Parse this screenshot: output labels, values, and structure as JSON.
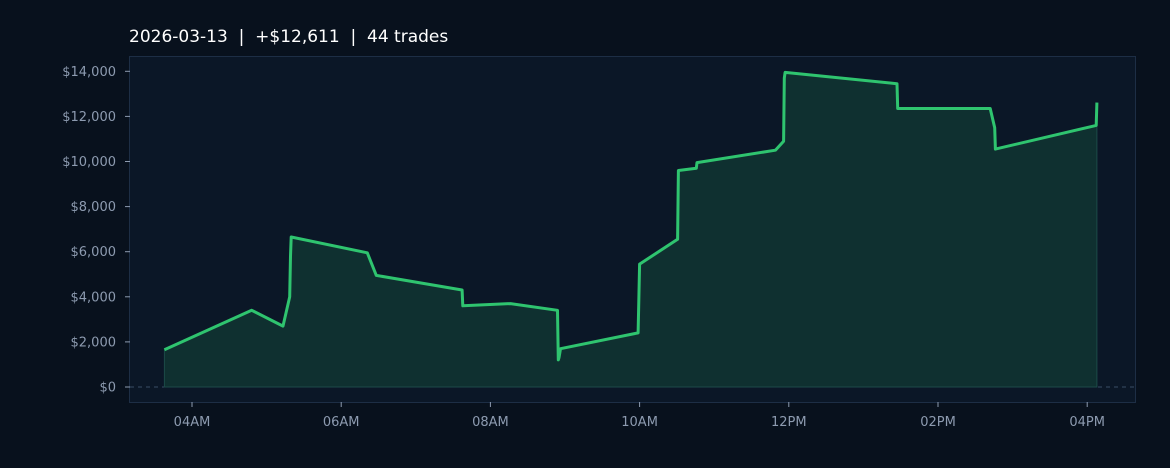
{
  "chart_data": {
    "type": "area",
    "title": "2026-03-13  |  +$12,611  |  44 trades",
    "xlabel": "",
    "ylabel": "",
    "x_tick_labels": [
      "04AM",
      "06AM",
      "08AM",
      "10AM",
      "12PM",
      "02PM",
      "04PM"
    ],
    "y_tick_labels": [
      "$0",
      "$2,000",
      "$4,000",
      "$6,000",
      "$8,000",
      "$10,000",
      "$12,000",
      "$14,000"
    ],
    "x_range_hours": [
      3.25,
      16.6
    ],
    "ylim": [
      -700,
      14700
    ],
    "grid": false,
    "zero_line": "dashed",
    "line_color": "#2fc46f",
    "fill_color": "#0f3030",
    "series": [
      {
        "x_hours": [
          3.63,
          4.8,
          5.22,
          5.31,
          5.32,
          5.33,
          6.35,
          6.47,
          7.62,
          7.63,
          8.27,
          8.9,
          8.91,
          8.92,
          8.94,
          9.98,
          9.99,
          10.0,
          10.51,
          10.52,
          10.76,
          10.77,
          11.82,
          11.93,
          11.94,
          11.95,
          13.45,
          13.46,
          14.7,
          14.76,
          14.77,
          16.12,
          16.13
        ],
        "values": [
          1650,
          3400,
          2700,
          4000,
          5800,
          6650,
          5950,
          4950,
          4300,
          3600,
          3700,
          3400,
          1200,
          1300,
          1700,
          2400,
          4000,
          5450,
          6550,
          9600,
          9700,
          9950,
          10500,
          10900,
          13700,
          13950,
          13450,
          12350,
          12350,
          11500,
          10550,
          11600,
          12611
        ]
      }
    ]
  }
}
